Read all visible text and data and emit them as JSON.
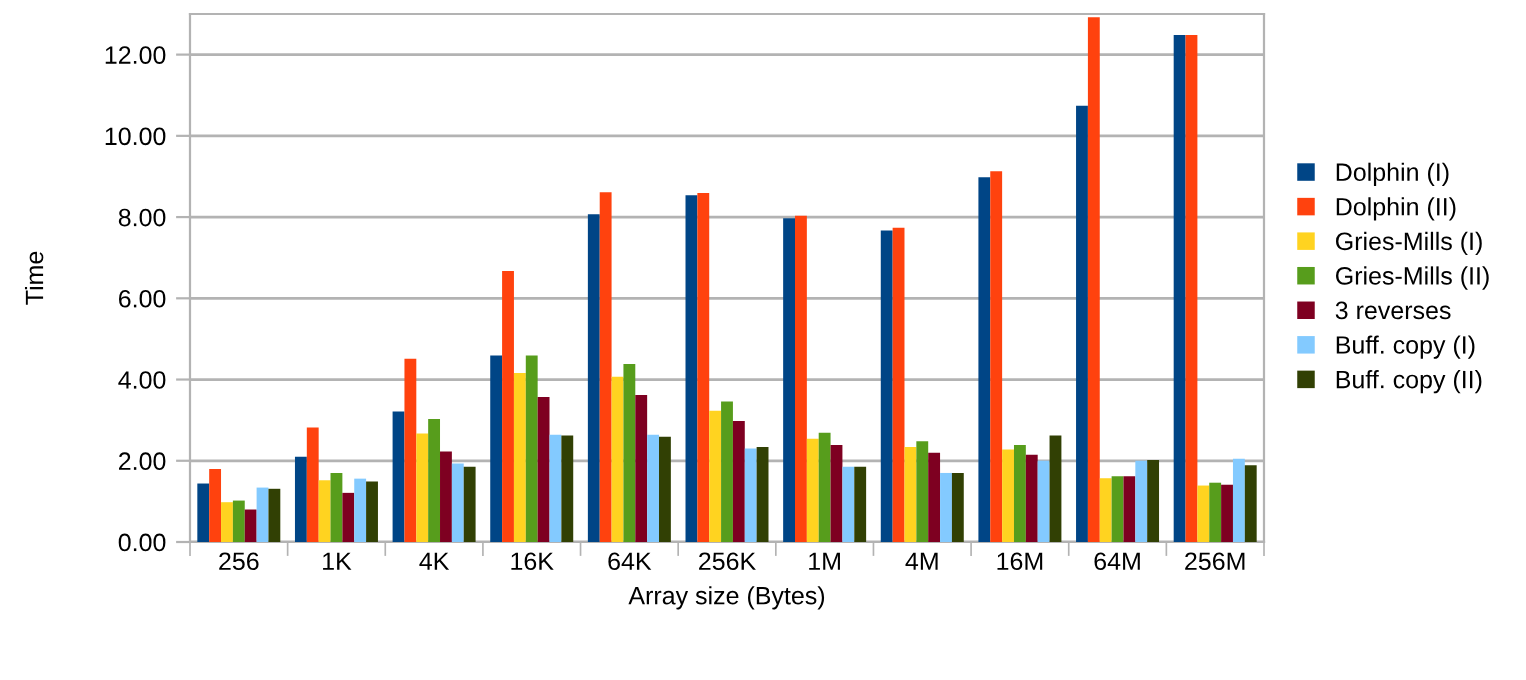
{
  "chart_data": {
    "type": "bar",
    "xlabel": "Array size (Bytes)",
    "ylabel": "Time",
    "categories": [
      "256",
      "1K",
      "4K",
      "16K",
      "64K",
      "256K",
      "1M",
      "4M",
      "16M",
      "64M",
      "256M"
    ],
    "series": [
      {
        "name": "Dolphin (I)",
        "color": "#004586",
        "values": [
          1.44,
          2.1,
          3.21,
          4.59,
          8.07,
          8.54,
          7.97,
          7.67,
          8.98,
          10.74,
          12.48
        ]
      },
      {
        "name": "Dolphin (II)",
        "color": "#ff420e",
        "values": [
          1.8,
          2.82,
          4.51,
          6.67,
          8.61,
          8.59,
          8.03,
          7.74,
          9.13,
          12.92,
          12.48
        ]
      },
      {
        "name": "Gries-Mills (I)",
        "color": "#ffd320",
        "values": [
          0.98,
          1.52,
          2.67,
          4.16,
          4.07,
          3.23,
          2.54,
          2.34,
          2.28,
          1.57,
          1.39
        ]
      },
      {
        "name": "Gries-Mills (II)",
        "color": "#579d1c",
        "values": [
          1.02,
          1.7,
          3.03,
          4.59,
          4.38,
          3.46,
          2.69,
          2.48,
          2.39,
          1.62,
          1.46
        ]
      },
      {
        "name": "3 reverses",
        "color": "#7e0021",
        "values": [
          0.8,
          1.21,
          2.23,
          3.57,
          3.62,
          2.98,
          2.39,
          2.2,
          2.15,
          1.62,
          1.41
        ]
      },
      {
        "name": "Buff. copy (I)",
        "color": "#83caff",
        "values": [
          1.34,
          1.56,
          1.93,
          2.64,
          2.64,
          2.3,
          1.85,
          1.7,
          2.0,
          2.0,
          2.05
        ]
      },
      {
        "name": "Buff. copy (II)",
        "color": "#314004",
        "values": [
          1.31,
          1.49,
          1.85,
          2.62,
          2.59,
          2.34,
          1.85,
          1.7,
          2.62,
          2.02,
          1.89
        ]
      }
    ],
    "ylim": [
      0,
      13
    ],
    "yticks": [
      {
        "value": 0,
        "label": "0.00"
      },
      {
        "value": 2,
        "label": "2.00"
      },
      {
        "value": 4,
        "label": "4.00"
      },
      {
        "value": 6,
        "label": "6.00"
      },
      {
        "value": 8,
        "label": "8.00"
      },
      {
        "value": 10,
        "label": "10.00"
      },
      {
        "value": 12,
        "label": "12.00"
      }
    ],
    "grid": "y",
    "legend": "right"
  }
}
